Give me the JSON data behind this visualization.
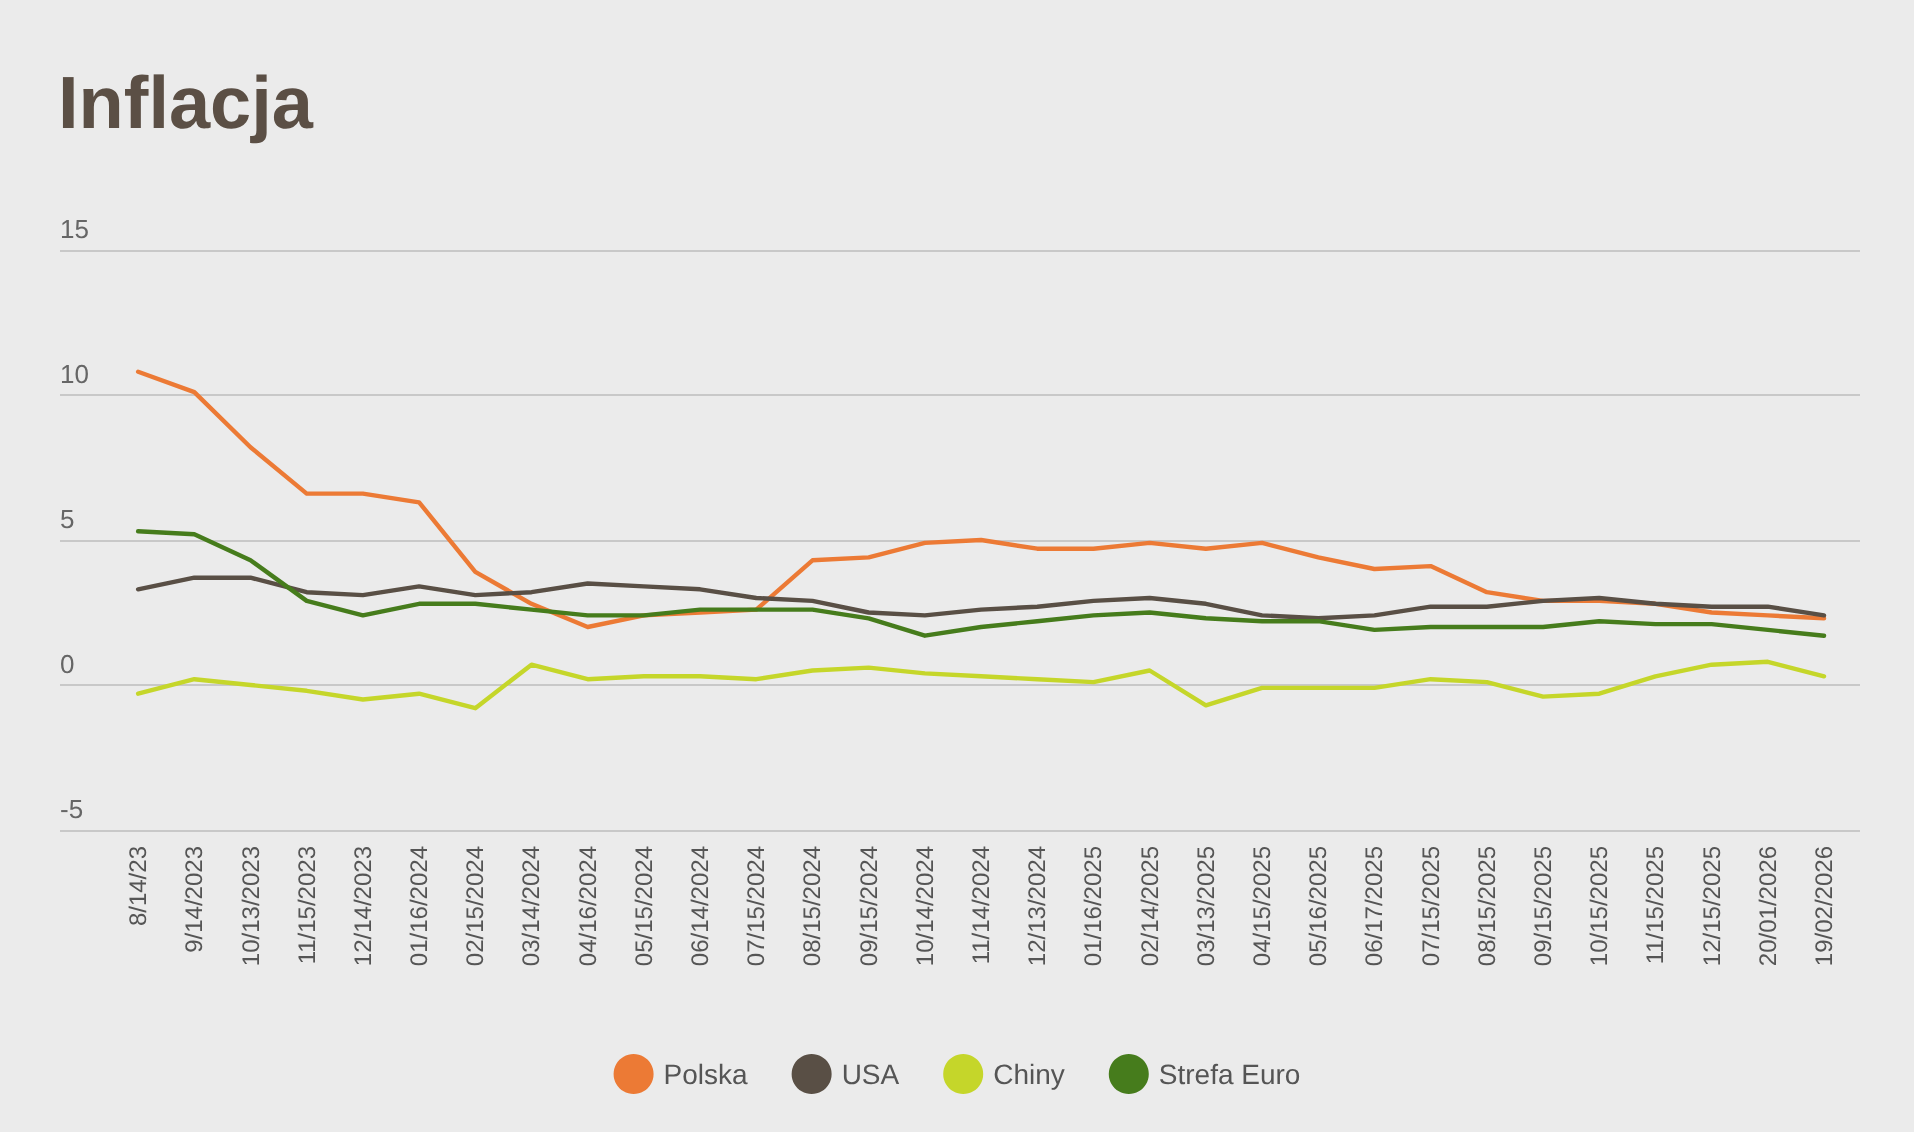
{
  "chart_data": {
    "type": "line",
    "title": "Inflacja",
    "categories": [
      "8/14/23",
      "9/14/2023",
      "10/13/2023",
      "11/15/2023",
      "12/14/2023",
      "01/16/2024",
      "02/15/2024",
      "03/14/2024",
      "04/16/2024",
      "05/15/2024",
      "06/14/2024",
      "07/15/2024",
      "08/15/2024",
      "09/15/2024",
      "10/14/2024",
      "11/14/2024",
      "12/13/2024",
      "01/16/2025",
      "02/14/2025",
      "03/13/2025",
      "04/15/2025",
      "05/16/2025",
      "06/17/2025",
      "07/15/2025",
      "08/15/2025",
      "09/15/2025",
      "10/15/2025",
      "11/15/2025",
      "12/15/2025",
      "20/01/2026",
      "19/02/2026"
    ],
    "series": [
      {
        "name": "Polska",
        "color": "#ec7a35",
        "values": [
          10.8,
          10.1,
          8.2,
          6.6,
          6.6,
          6.3,
          3.9,
          2.8,
          2.0,
          2.4,
          2.5,
          2.6,
          4.3,
          4.4,
          4.9,
          5.0,
          4.7,
          4.7,
          4.9,
          4.7,
          4.9,
          4.4,
          4.0,
          4.1,
          3.2,
          2.9,
          2.9,
          2.8,
          2.5,
          2.4,
          2.3
        ]
      },
      {
        "name": "USA",
        "color": "#594f45",
        "values": [
          3.3,
          3.7,
          3.7,
          3.2,
          3.1,
          3.4,
          3.1,
          3.2,
          3.5,
          3.4,
          3.3,
          3.0,
          2.9,
          2.5,
          2.4,
          2.6,
          2.7,
          2.9,
          3.0,
          2.8,
          2.4,
          2.3,
          2.4,
          2.7,
          2.7,
          2.9,
          3.0,
          2.8,
          2.7,
          2.7,
          2.4
        ]
      },
      {
        "name": "Chiny",
        "color": "#c5d62a",
        "values": [
          -0.3,
          0.2,
          0.0,
          -0.2,
          -0.5,
          -0.3,
          -0.8,
          0.7,
          0.2,
          0.3,
          0.3,
          0.2,
          0.5,
          0.6,
          0.4,
          0.3,
          0.2,
          0.1,
          0.5,
          -0.7,
          -0.1,
          -0.1,
          -0.1,
          0.2,
          0.1,
          -0.4,
          -0.3,
          0.3,
          0.7,
          0.8,
          0.3
        ]
      },
      {
        "name": "Strefa Euro",
        "color": "#467c1c",
        "values": [
          5.3,
          5.2,
          4.3,
          2.9,
          2.4,
          2.8,
          2.8,
          2.6,
          2.4,
          2.4,
          2.6,
          2.6,
          2.6,
          2.3,
          1.7,
          2.0,
          2.2,
          2.4,
          2.5,
          2.3,
          2.2,
          2.2,
          1.9,
          2.0,
          2.0,
          2.0,
          2.2,
          2.1,
          2.1,
          1.9,
          1.7
        ]
      }
    ],
    "ylim": [
      -5,
      15
    ],
    "yticks": [
      -5,
      0,
      5,
      10,
      15
    ],
    "grid": "y",
    "legend": "bottom",
    "marker": "none",
    "line_style": "solid"
  }
}
